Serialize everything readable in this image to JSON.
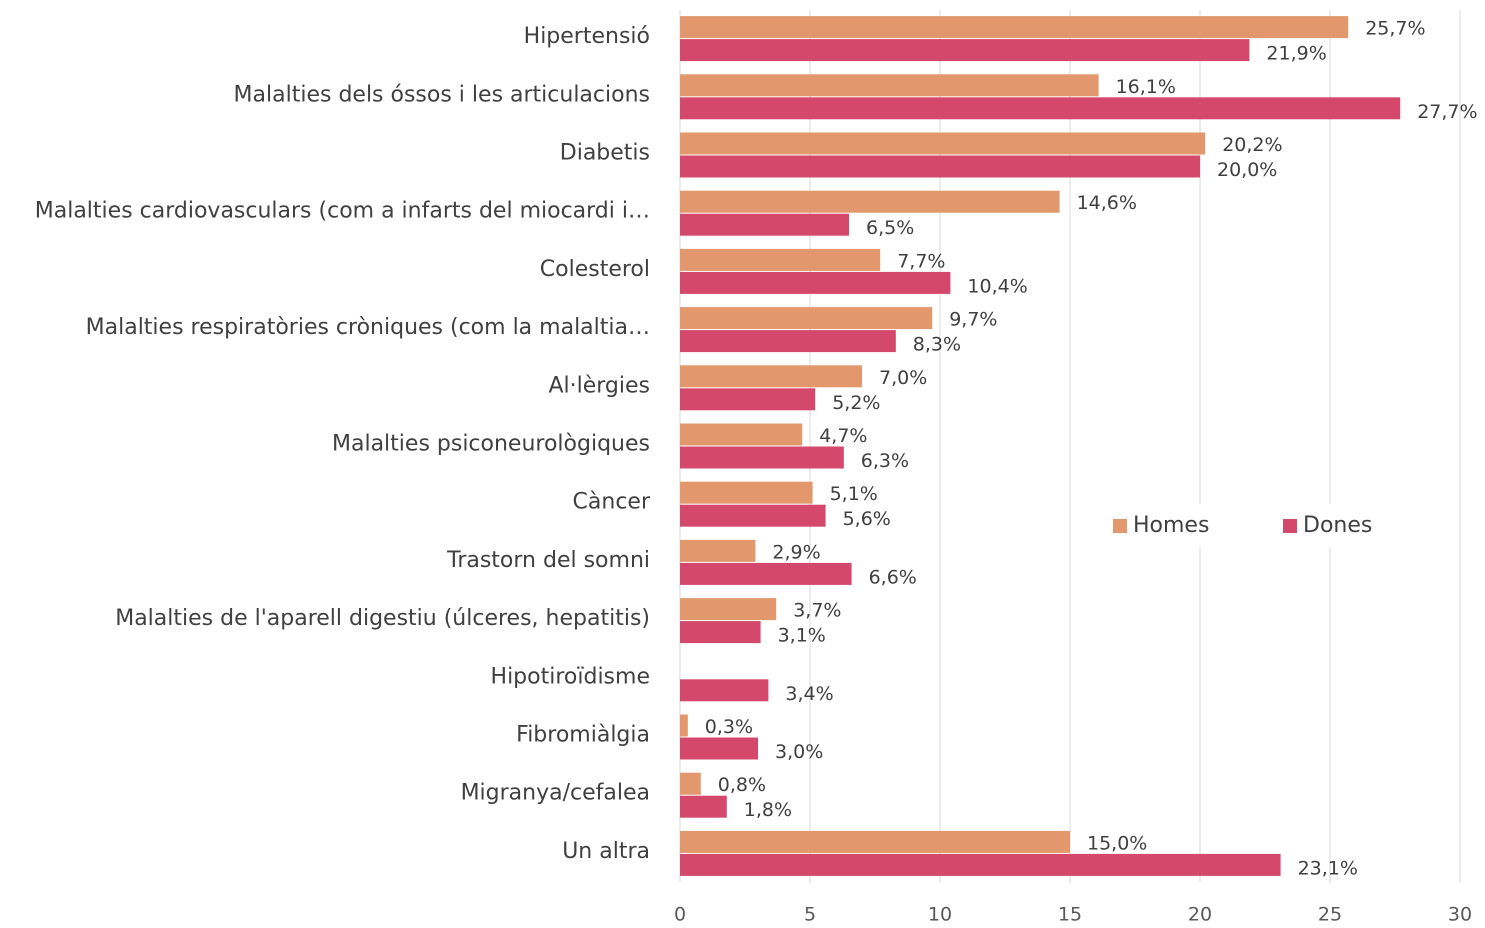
{
  "chart_data": {
    "type": "hbar",
    "categories": [
      "Hipertensió",
      "Malalties dels óssos i les articulacions",
      "Diabetis",
      "Malalties cardiovasculars (com a infarts del miocardi i…",
      "Colesterol",
      "Malalties respiratòries cròniques (com la malaltia…",
      "Al·lèrgies",
      "Malalties psiconeurològiques",
      "Càncer",
      "Trastorn del somni",
      "Malalties de l'aparell digestiu (úlceres, hepatitis)",
      "Hipotiroïdisme",
      "Fibromiàlgia",
      "Migranya/cefalea",
      "Un altra"
    ],
    "series": [
      {
        "name": "Homes",
        "color": "#e2976c",
        "values": [
          25.7,
          16.1,
          20.2,
          14.6,
          7.7,
          9.7,
          7.0,
          4.7,
          5.1,
          2.9,
          3.7,
          null,
          0.3,
          0.8,
          15.0
        ],
        "value_labels": [
          "25,7%",
          "16,1%",
          "20,2%",
          "14,6%",
          "7,7%",
          "9,7%",
          "7,0%",
          "4,7%",
          "5,1%",
          "2,9%",
          "3,7%",
          null,
          "0,3%",
          "0,8%",
          "15,0%"
        ]
      },
      {
        "name": "Dones",
        "color": "#d4496b",
        "values": [
          21.9,
          27.7,
          20.0,
          6.5,
          10.4,
          8.3,
          5.2,
          6.3,
          5.6,
          6.6,
          3.1,
          3.4,
          3.0,
          1.8,
          23.1
        ],
        "value_labels": [
          "21,9%",
          "27,7%",
          "20,0%",
          "6,5%",
          "10,4%",
          "8,3%",
          "5,2%",
          "6,3%",
          "5,6%",
          "6,6%",
          "3,1%",
          "3,4%",
          "3,0%",
          "1,8%",
          "23,1%"
        ]
      }
    ],
    "xlim": [
      0,
      30
    ],
    "xticks": [
      0,
      5,
      10,
      15,
      20,
      25,
      30
    ],
    "grid": true,
    "legend": "right"
  }
}
